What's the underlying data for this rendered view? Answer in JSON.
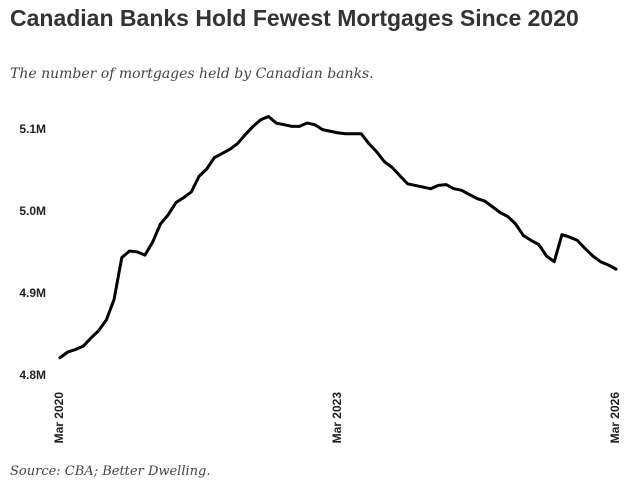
{
  "chart_data": {
    "type": "line",
    "title": "Canadian Banks Hold Fewest Mortgages Since 2020",
    "subtitle": "The number of mortgages held by Canadian banks.",
    "source": "Source: CBA; Better Dwelling.",
    "categories": [
      "Mar 2020",
      null,
      null,
      null,
      null,
      null,
      null,
      null,
      null,
      null,
      null,
      null,
      null,
      null,
      null,
      null,
      null,
      null,
      null,
      null,
      null,
      null,
      null,
      null,
      null,
      null,
      null,
      null,
      null,
      null,
      null,
      null,
      null,
      null,
      null,
      null,
      "Mar 2023",
      null,
      null,
      null,
      null,
      null,
      null,
      null,
      null,
      null,
      null,
      null,
      null,
      null,
      null,
      null,
      null,
      null,
      null,
      null,
      null,
      null,
      null,
      null,
      null,
      null,
      null,
      null,
      null,
      null,
      null,
      null,
      null,
      null,
      null,
      null,
      "Mar 2026"
    ],
    "series": [
      {
        "name": "Mortgages",
        "color": "#000000",
        "values": [
          4.822,
          4.829,
          4.832,
          4.836,
          4.846,
          4.855,
          4.868,
          4.893,
          4.944,
          4.952,
          4.951,
          4.947,
          4.963,
          4.985,
          4.996,
          5.011,
          5.017,
          5.024,
          5.043,
          5.052,
          5.066,
          5.071,
          5.076,
          5.083,
          5.094,
          5.104,
          5.112,
          5.116,
          5.108,
          5.106,
          5.104,
          5.104,
          5.108,
          5.106,
          5.1,
          5.098,
          5.096,
          5.095,
          5.095,
          5.095,
          5.083,
          5.073,
          5.061,
          5.054,
          5.044,
          5.034,
          5.032,
          5.03,
          5.028,
          5.032,
          5.033,
          5.028,
          5.026,
          5.021,
          5.016,
          5.013,
          5.006,
          4.999,
          4.994,
          4.985,
          4.971,
          4.965,
          4.96,
          4.946,
          4.939,
          4.972,
          4.969,
          4.965,
          4.955,
          4.946,
          4.939,
          4.935,
          4.93
        ]
      }
    ],
    "ylim": [
      4.79,
      5.13
    ],
    "yticks": [
      {
        "value": 4.8,
        "label": "4.8M"
      },
      {
        "value": 4.9,
        "label": "4.9M"
      },
      {
        "value": 5.0,
        "label": "5.0M"
      },
      {
        "value": 5.1,
        "label": "5.1M"
      }
    ],
    "grid": false
  }
}
